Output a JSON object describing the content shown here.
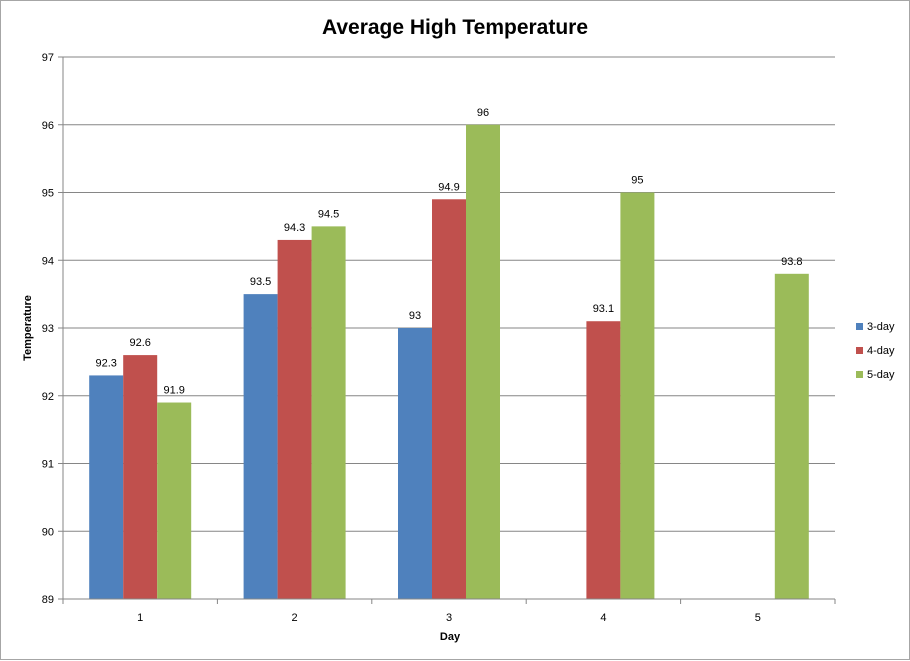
{
  "chart_data": {
    "type": "bar",
    "title": "Average High Temperature",
    "xlabel": "Day",
    "ylabel": "Temperature",
    "categories": [
      "1",
      "2",
      "3",
      "4",
      "5"
    ],
    "ylim": [
      89,
      97
    ],
    "yticks": [
      "89",
      "90",
      "91",
      "92",
      "93",
      "94",
      "95",
      "96",
      "97"
    ],
    "grid": true,
    "legend_position": "right",
    "series": [
      {
        "name": "3-day",
        "color": "#4f81bd",
        "values": [
          92.3,
          93.5,
          93,
          null,
          null
        ]
      },
      {
        "name": "4-day",
        "color": "#c0504d",
        "values": [
          92.6,
          94.3,
          94.9,
          93.1,
          null
        ]
      },
      {
        "name": "5-day",
        "color": "#9bbb59",
        "values": [
          91.9,
          94.5,
          96,
          95,
          93.8
        ]
      }
    ]
  }
}
